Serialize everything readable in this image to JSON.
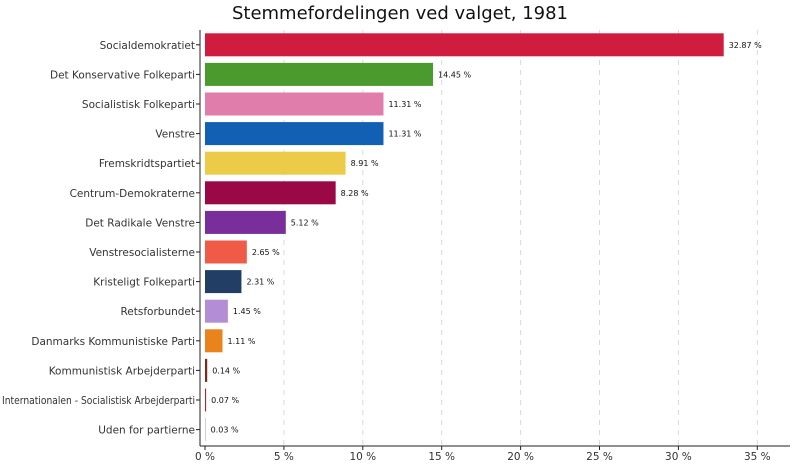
{
  "chart_data": {
    "type": "bar",
    "orientation": "horizontal",
    "title": "Stemmefordelingen ved valget, 1981",
    "xlabel": "",
    "ylabel": "",
    "xlim": [
      0,
      37
    ],
    "xticks": [
      0,
      5,
      10,
      15,
      20,
      25,
      30,
      35
    ],
    "xtick_labels": [
      "0 %",
      "5 %",
      "10 %",
      "15 %",
      "20 %",
      "25 %",
      "30 %",
      "35 %"
    ],
    "grid": "vertical-dashed",
    "legend": "none",
    "categories": [
      "Socialdemokratiet",
      "Det Konservative Folkeparti",
      "Socialistisk Folkeparti",
      "Venstre",
      "Fremskridtspartiet",
      "Centrum-Demokraterne",
      "Det Radikale Venstre",
      "Venstresocialisterne",
      "Kristeligt Folkeparti",
      "Retsforbundet",
      "Danmarks Kommunistiske Parti",
      "Kommunistisk Arbejderparti",
      "Internationalen - Socialistisk Arbejderparti",
      "Uden for partierne"
    ],
    "values": [
      32.87,
      14.45,
      11.31,
      11.31,
      8.91,
      8.28,
      5.12,
      2.65,
      2.31,
      1.45,
      1.11,
      0.14,
      0.07,
      0.03
    ],
    "value_labels": [
      "32.87 %",
      "14.45 %",
      "11.31 %",
      "11.31 %",
      "8.91 %",
      "8.28 %",
      "5.12 %",
      "2.65 %",
      "2.31 %",
      "1.45 %",
      "1.11 %",
      "0.14 %",
      "0.07 %",
      "0.03 %"
    ],
    "colors": [
      "#D01C3E",
      "#4B9A2E",
      "#E07DAA",
      "#1160B4",
      "#ECCB48",
      "#9A0845",
      "#7A2E9C",
      "#EF5B47",
      "#233E64",
      "#B38DD6",
      "#E9831C",
      "#7A2A16",
      "#B42424",
      "#B0B0B0"
    ]
  }
}
